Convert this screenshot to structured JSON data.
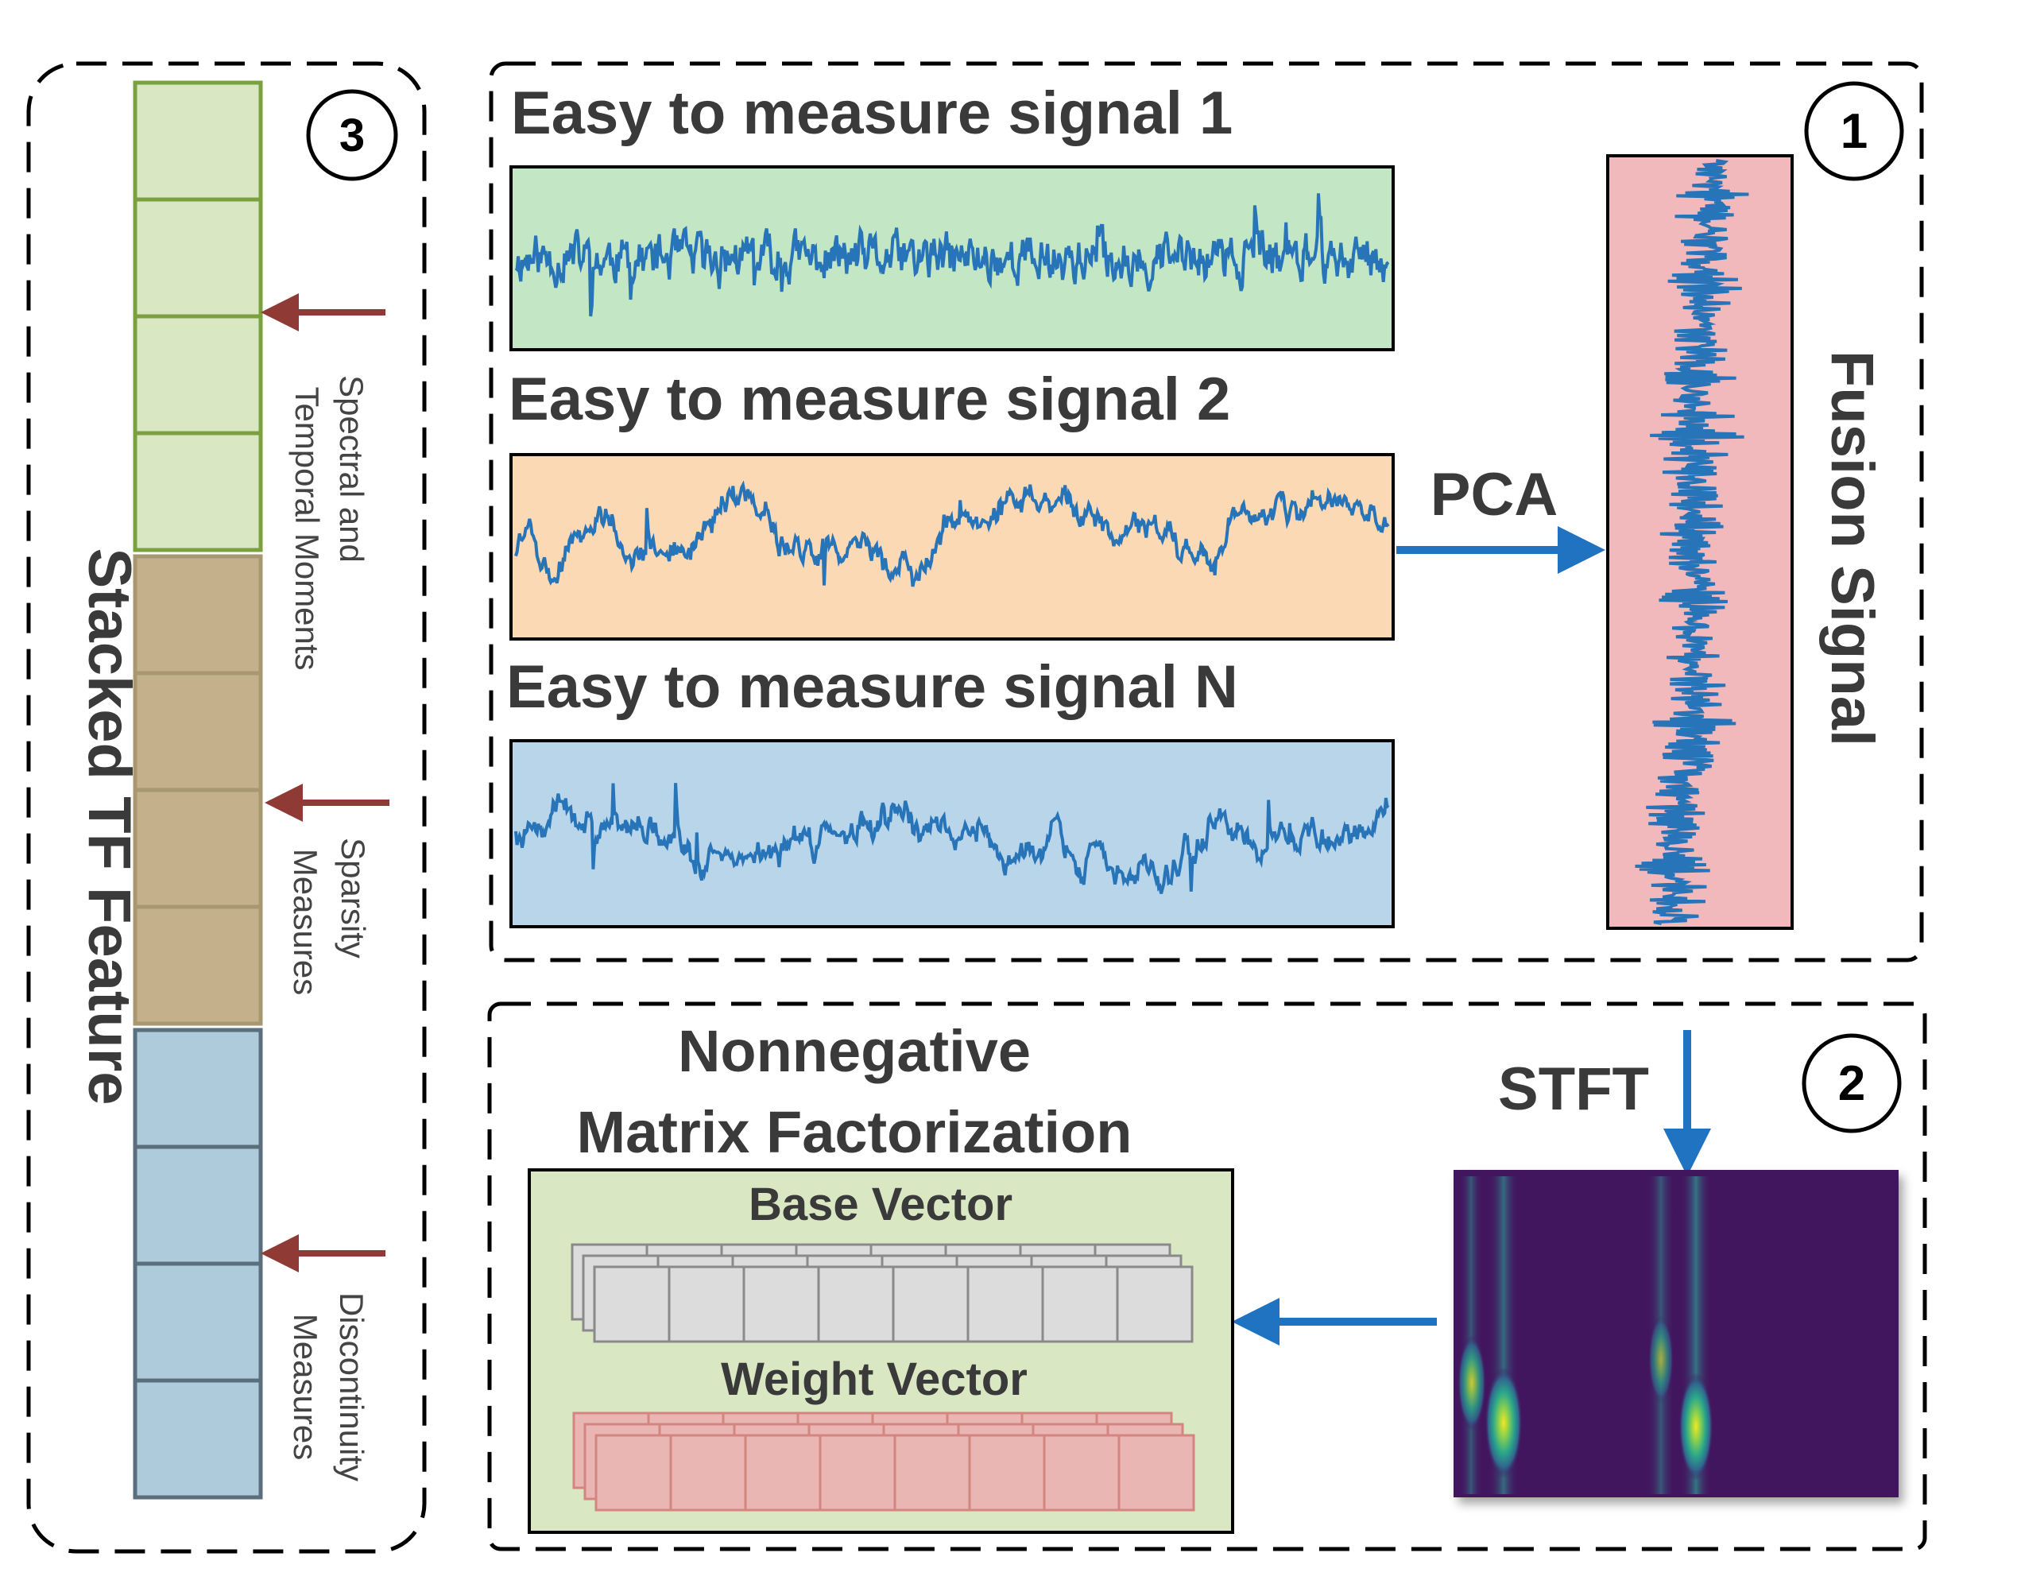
{
  "panel1": {
    "badge": "1",
    "signals": [
      {
        "title": "Easy to measure signal 1",
        "bg": "#c3e6c4",
        "kind": "noisy"
      },
      {
        "title": "Easy to measure signal 2",
        "bg": "#fcd9b5",
        "kind": "smooth"
      },
      {
        "title": "Easy to measure signal N",
        "bg": "#b9d5ea",
        "kind": "smooth"
      }
    ],
    "pca_label": "PCA",
    "fusion_label": "Fusion Signal",
    "fusion_bg": "#f2b9bd",
    "line_color": "#2874b8"
  },
  "panel2": {
    "badge": "2",
    "stft_label": "STFT",
    "nmf_title_line1": "Nonnegative",
    "nmf_title_line2": "Matrix Factorization",
    "base_vector_label": "Base Vector",
    "weight_vector_label": "Weight Vector",
    "nmf_bg": "#d9e8c3",
    "base_color": "#dcdcdc",
    "weight_color": "#e9b6b4"
  },
  "panel3": {
    "badge": "3",
    "title": "Stacked TF Feature",
    "groups": [
      {
        "line1": "Spectral and",
        "line2": "Temporal Moments",
        "fill": "#d9e8c3",
        "stroke": "#7aa03f"
      },
      {
        "line1": "Sparsity",
        "line2": "Measures",
        "fill": "#c4b08a",
        "stroke": "#a89872"
      },
      {
        "line1": "Discontinuity",
        "line2": "Measures",
        "fill": "#aecbdc",
        "stroke": "#5a6e7c"
      }
    ]
  },
  "colors": {
    "arrow_blue": "#1f73c0",
    "arrow_red": "#8f3a34"
  }
}
